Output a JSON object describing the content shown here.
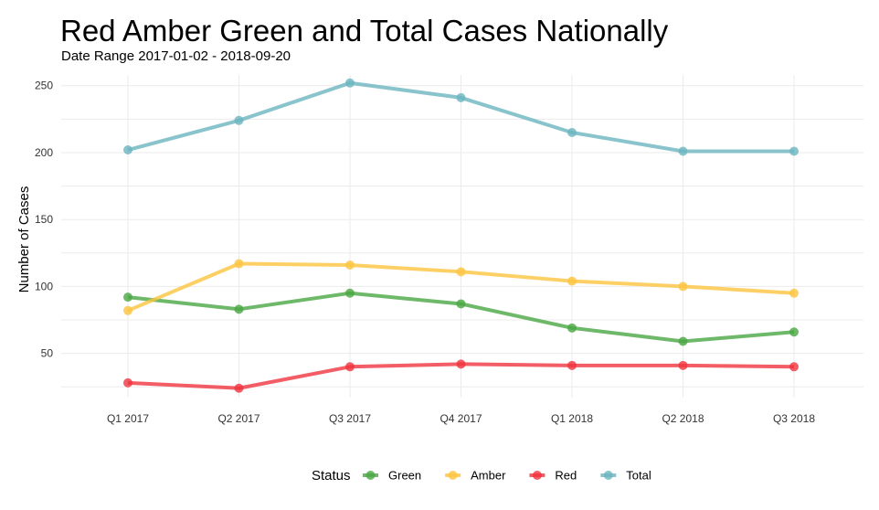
{
  "chart_data": {
    "type": "line",
    "title": "Red Amber Green and Total Cases Nationally",
    "subtitle": "Date Range 2017-01-02 - 2018-09-20",
    "xlabel": "",
    "ylabel": "Number of Cases",
    "categories": [
      "Q1 2017",
      "Q2 2017",
      "Q3 2017",
      "Q4 2017",
      "Q1 2018",
      "Q2 2018",
      "Q3 2018"
    ],
    "ylim": [
      17,
      258
    ],
    "yticks": [
      50,
      100,
      150,
      200,
      250
    ],
    "grid": true,
    "legend": {
      "title": "Status",
      "position": "bottom"
    },
    "series": [
      {
        "name": "Green",
        "color": "#4aa843",
        "values": [
          92,
          83,
          95,
          87,
          69,
          59,
          66
        ]
      },
      {
        "name": "Amber",
        "color": "#fdc440",
        "values": [
          82,
          117,
          116,
          111,
          104,
          100,
          95
        ]
      },
      {
        "name": "Red",
        "color": "#f0353f",
        "values": [
          28,
          24,
          40,
          42,
          41,
          41,
          40
        ]
      },
      {
        "name": "Total",
        "color": "#6bb5c1",
        "values": [
          202,
          224,
          252,
          241,
          215,
          201,
          201
        ]
      }
    ]
  }
}
